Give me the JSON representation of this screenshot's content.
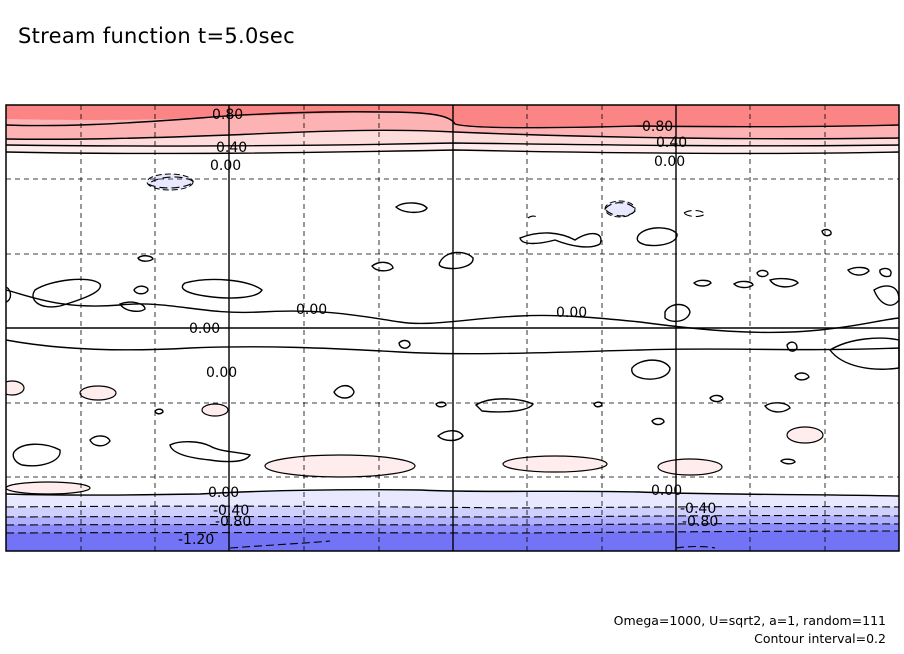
{
  "chart_data": {
    "type": "contour",
    "title": "Stream function t=5.0sec",
    "parameters": "Omega=1000, U=sqrt2, a=1, random=111",
    "contour_interval_text": "Contour interval=0.2",
    "contour_interval": 0.2,
    "grid": true,
    "colors": {
      "positive_strong": "#fb8585",
      "positive_mid": "#fdb3b3",
      "positive_weak": "#ffdcdc",
      "positive_faint": "#ffeded",
      "negative_faint": "#e8e8ff",
      "negative_weak": "#d0d0ff",
      "negative_mid": "#b0b0ff",
      "negative_strong": "#8a8af8",
      "negative_deep": "#7373f5"
    },
    "contour_labels": [
      {
        "text": "0.80",
        "value": 0.8
      },
      {
        "text": "0.40",
        "value": 0.4
      },
      {
        "text": "0.00",
        "value": 0.0
      },
      {
        "text": "0.80",
        "value": 0.8
      },
      {
        "text": "0.40",
        "value": 0.4
      },
      {
        "text": "0.00",
        "value": 0.0
      },
      {
        "text": "0.00",
        "value": 0.0
      },
      {
        "text": "0.00",
        "value": 0.0
      },
      {
        "text": "0.00",
        "value": 0.0
      },
      {
        "text": "0.00",
        "value": 0.0
      },
      {
        "text": "0.00",
        "value": 0.0
      },
      {
        "text": "0.00",
        "value": 0.0
      },
      {
        "text": "-0.40",
        "value": -0.4
      },
      {
        "text": "-0.80",
        "value": -0.8
      },
      {
        "text": "-1.20",
        "value": -1.2
      },
      {
        "text": "-0.40",
        "value": -0.4
      },
      {
        "text": "-0.80",
        "value": -0.8
      }
    ]
  }
}
